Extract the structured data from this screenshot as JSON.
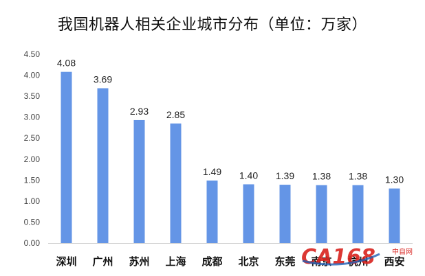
{
  "chart_data": {
    "type": "bar",
    "title": "我国机器人相关企业城市分布（单位：万家）",
    "categories": [
      "深圳",
      "广州",
      "苏州",
      "上海",
      "成都",
      "北京",
      "东莞",
      "南京",
      "杭州",
      "西安"
    ],
    "values": [
      4.08,
      3.69,
      2.93,
      2.85,
      1.49,
      1.4,
      1.39,
      1.38,
      1.38,
      1.3
    ],
    "value_labels": [
      "4.08",
      "3.69",
      "2.93",
      "2.85",
      "1.49",
      "1.40",
      "1.39",
      "1.38",
      "1.38",
      "1.30"
    ],
    "yticks": [
      "0.00",
      "0.50",
      "1.00",
      "1.50",
      "2.00",
      "2.50",
      "3.00",
      "3.50",
      "4.00",
      "4.50"
    ],
    "ylim": [
      0,
      4.5
    ],
    "xlabel": "",
    "ylabel": "",
    "grid": false,
    "bar_color": "#6495E6"
  },
  "watermark": {
    "brand": "CA168",
    "text": "中自网"
  }
}
